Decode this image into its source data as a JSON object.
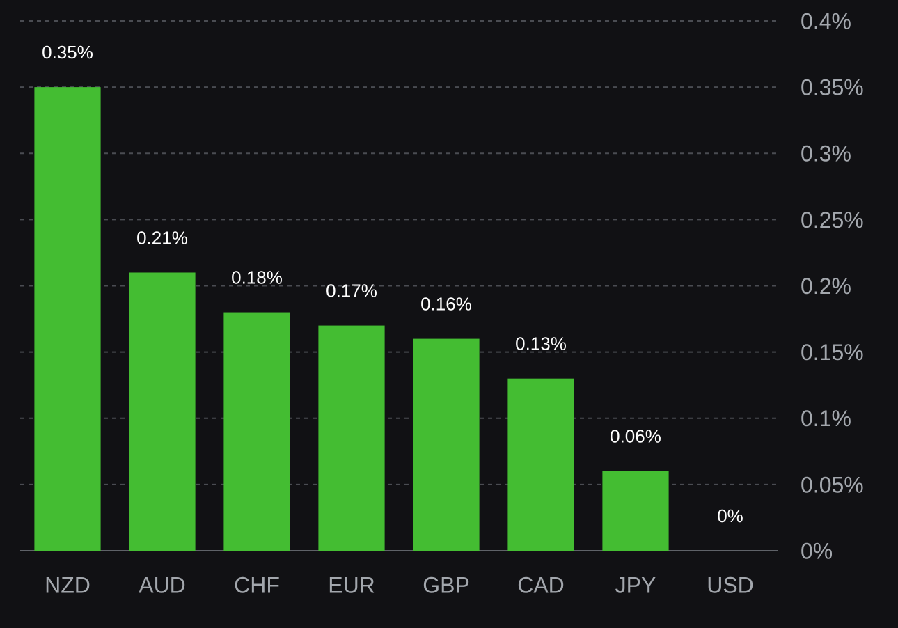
{
  "chart_data": {
    "type": "bar",
    "categories": [
      "NZD",
      "AUD",
      "CHF",
      "EUR",
      "GBP",
      "CAD",
      "JPY",
      "USD"
    ],
    "values": [
      0.35,
      0.21,
      0.18,
      0.17,
      0.16,
      0.13,
      0.06,
      0
    ],
    "value_labels": [
      "0.35%",
      "0.21%",
      "0.18%",
      "0.17%",
      "0.16%",
      "0.13%",
      "0.06%",
      "0%"
    ],
    "color": "#44bd32",
    "ylim": [
      0,
      0.4
    ],
    "yticks": [
      {
        "value": 0,
        "label": "0%"
      },
      {
        "value": 0.05,
        "label": "0.05%"
      },
      {
        "value": 0.1,
        "label": "0.1%"
      },
      {
        "value": 0.15,
        "label": "0.15%"
      },
      {
        "value": 0.2,
        "label": "0.2%"
      },
      {
        "value": 0.25,
        "label": "0.25%"
      },
      {
        "value": 0.3,
        "label": "0.3%"
      },
      {
        "value": 0.35,
        "label": "0.35%"
      },
      {
        "value": 0.4,
        "label": "0.4%"
      }
    ],
    "grid": true
  }
}
